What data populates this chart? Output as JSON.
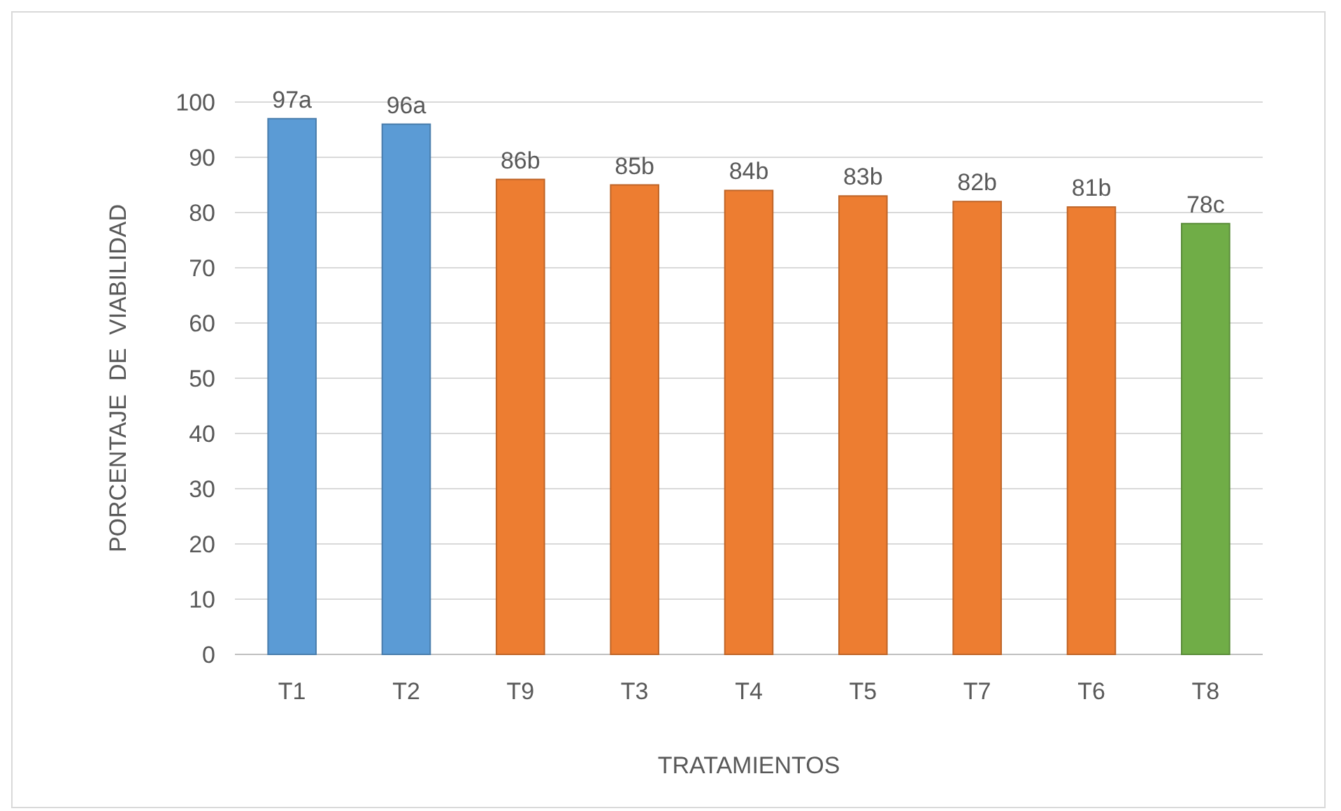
{
  "chart_data": {
    "type": "bar",
    "xlabel": "TRATAMIENTOS",
    "ylabel": "PORCENTAJE  DE  VIABILIDAD",
    "categories": [
      "T1",
      "T2",
      "T9",
      "T3",
      "T4",
      "T5",
      "T7",
      "T6",
      "T8"
    ],
    "values": [
      97,
      96,
      86,
      85,
      84,
      83,
      82,
      81,
      78
    ],
    "value_labels": [
      "97a",
      "96a",
      "86b",
      "85b",
      "84b",
      "83b",
      "82b",
      "81b",
      "78c"
    ],
    "colors": [
      "#5b9bd5",
      "#5b9bd5",
      "#ed7d31",
      "#ed7d31",
      "#ed7d31",
      "#ed7d31",
      "#ed7d31",
      "#ed7d31",
      "#70ad47"
    ],
    "ylim": [
      0,
      100
    ],
    "yticks": [
      0,
      10,
      20,
      30,
      40,
      50,
      60,
      70,
      80,
      90,
      100
    ],
    "grid": "y"
  }
}
